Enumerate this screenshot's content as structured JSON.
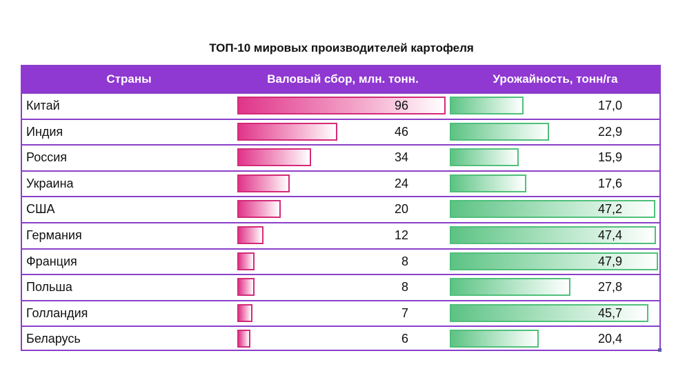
{
  "title": "ТОП-10 мировых производителей картофеля",
  "headers": {
    "country": "Страны",
    "production": "Валовый сбор, млн. тонн.",
    "yield": "Урожайность, тонн/га"
  },
  "colors": {
    "header_bg": "#8f38d2",
    "border": "#8a3fc9",
    "production_bar": "#e0358a",
    "yield_bar": "#5cc383"
  },
  "rows": [
    {
      "country": "Китай",
      "production": "96",
      "yield": "17,0"
    },
    {
      "country": "Индия",
      "production": "46",
      "yield": "22,9"
    },
    {
      "country": "Россия",
      "production": "34",
      "yield": "15,9"
    },
    {
      "country": "Украина",
      "production": "24",
      "yield": "17,6"
    },
    {
      "country": "США",
      "production": "20",
      "yield": "47,2"
    },
    {
      "country": "Германия",
      "production": "12",
      "yield": "47,4"
    },
    {
      "country": "Франция",
      "production": "8",
      "yield": "47,9"
    },
    {
      "country": "Польша",
      "production": "8",
      "yield": "27,8"
    },
    {
      "country": "Голландия",
      "production": "7",
      "yield": "45,7"
    },
    {
      "country": "Беларусь",
      "production": "6",
      "yield": "20,4"
    }
  ],
  "chart_data": {
    "type": "table",
    "title": "ТОП-10 мировых производителей картофеля",
    "columns": [
      "Страны",
      "Валовый сбор, млн. тонн.",
      "Урожайность, тонн/га"
    ],
    "categories": [
      "Китай",
      "Индия",
      "Россия",
      "Украина",
      "США",
      "Германия",
      "Франция",
      "Польша",
      "Голландия",
      "Беларусь"
    ],
    "series": [
      {
        "name": "Валовый сбор, млн. тонн.",
        "values": [
          96,
          46,
          34,
          24,
          20,
          12,
          8,
          8,
          7,
          6
        ],
        "max": 96
      },
      {
        "name": "Урожайность, тонн/га",
        "values": [
          17.0,
          22.9,
          15.9,
          17.6,
          47.2,
          47.4,
          47.9,
          27.8,
          45.7,
          20.4
        ],
        "max": 47.9
      }
    ]
  }
}
